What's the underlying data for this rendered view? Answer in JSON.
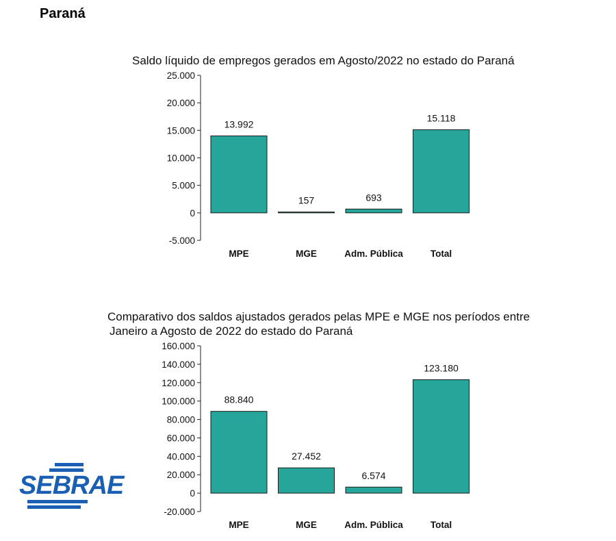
{
  "page": {
    "heading": "Paraná"
  },
  "logo": {
    "text": "SEBRAE",
    "color": "#1a5fb4"
  },
  "colors": {
    "bar_fill": "#26a69a",
    "bar_stroke": "#1a1a1a",
    "axis": "#222222"
  },
  "chart_data": [
    {
      "type": "bar",
      "title": [
        "Saldo líquido de empregos gerados em Agosto/2022 no estado do Paraná"
      ],
      "categories": [
        "MPE",
        "MGE",
        "Adm. Pública",
        "Total"
      ],
      "values": [
        13992,
        157,
        693,
        15118
      ],
      "value_labels": [
        "13.992",
        "157",
        "693",
        "15.118"
      ],
      "ylim": [
        -5000,
        25000
      ],
      "yticks": [
        -5000,
        0,
        5000,
        10000,
        15000,
        20000,
        25000
      ],
      "ytick_labels": [
        "-5.000",
        "0",
        "5.000",
        "10.000",
        "15.000",
        "20.000",
        "25.000"
      ],
      "xlabel": "",
      "ylabel": "",
      "grid": false,
      "legend": "none"
    },
    {
      "type": "bar",
      "title": [
        "Comparativo dos saldos ajustados gerados pelas MPE e MGE nos períodos entre",
        "Janeiro a Agosto de 2022 do estado do Paraná"
      ],
      "categories": [
        "MPE",
        "MGE",
        "Adm. Pública",
        "Total"
      ],
      "values": [
        88840,
        27452,
        6574,
        123180
      ],
      "value_labels": [
        "88.840",
        "27.452",
        "6.574",
        "123.180"
      ],
      "ylim": [
        -20000,
        160000
      ],
      "yticks": [
        -20000,
        0,
        20000,
        40000,
        60000,
        80000,
        100000,
        120000,
        140000,
        160000
      ],
      "ytick_labels": [
        "-20.000",
        "0",
        "20.000",
        "40.000",
        "60.000",
        "80.000",
        "100.000",
        "120.000",
        "140.000",
        "160.000"
      ],
      "xlabel": "",
      "ylabel": "",
      "grid": false,
      "legend": "none"
    }
  ]
}
